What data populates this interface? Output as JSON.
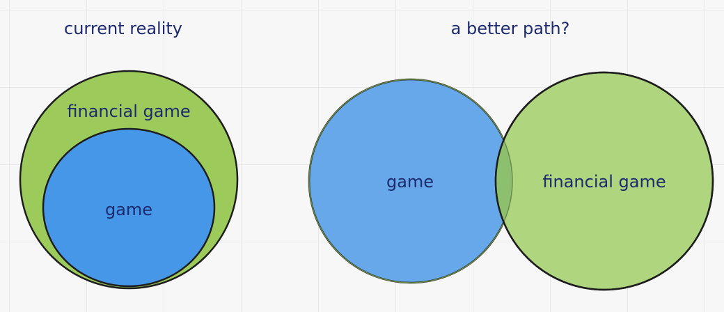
{
  "colors": {
    "green": "#9ccb5c",
    "blue": "#4797e8",
    "blue_light": "#67a8ea",
    "green_light": "#afd67f",
    "outline": "#1e1e1e",
    "text": "#1d2a6e"
  },
  "diagrams": {
    "current": {
      "title": "current reality",
      "outer_label": "financial game",
      "inner_label": "game"
    },
    "better": {
      "title": "a better path?",
      "left_label": "game",
      "right_label": "financial game"
    }
  }
}
